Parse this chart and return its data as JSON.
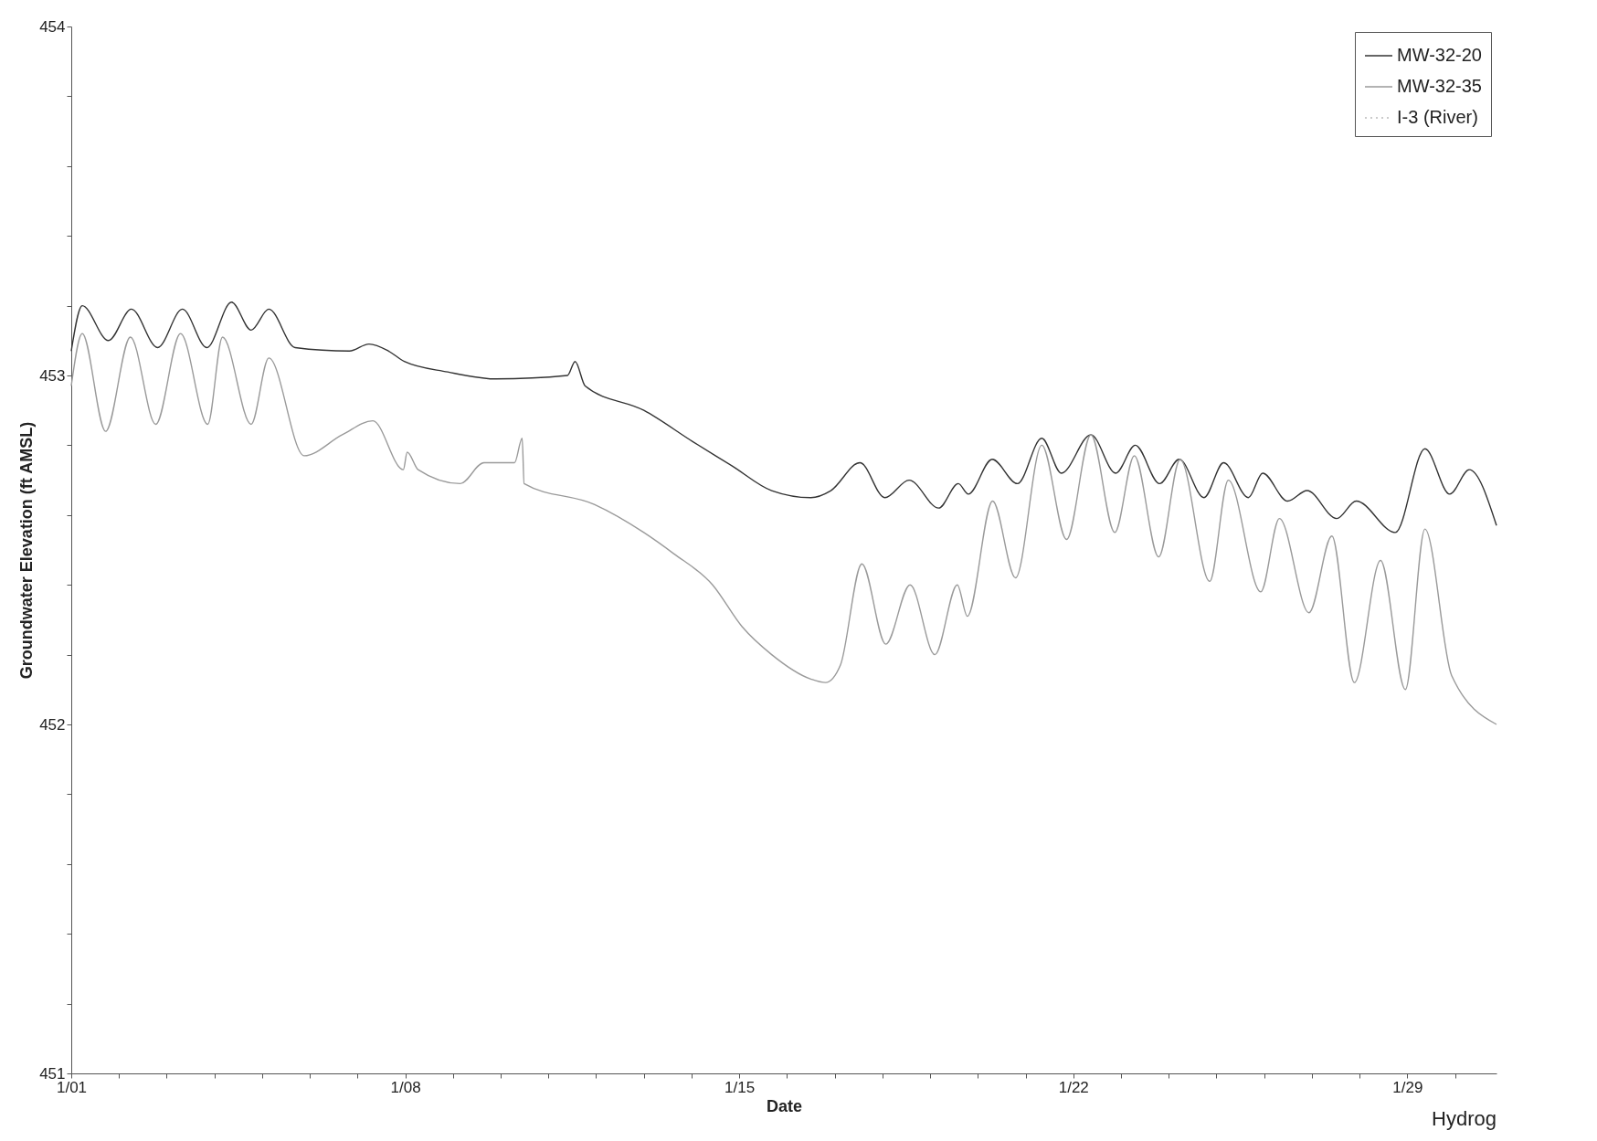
{
  "chart_data": {
    "type": "line",
    "xlabel": "Date",
    "ylabel": "Groundwater Elevation (ft AMSL)",
    "annotations": [
      "Hydrog"
    ],
    "xlim": [
      "--01-01",
      "--01-30T20:53"
    ],
    "ylim": [
      451,
      454
    ],
    "xticks": [
      {
        "value": "--01-01",
        "label": "1/01"
      },
      {
        "value": "--01-02",
        "label": null
      },
      {
        "value": "--01-03",
        "label": null
      },
      {
        "value": "--01-04",
        "label": null
      },
      {
        "value": "--01-05",
        "label": null
      },
      {
        "value": "--01-06",
        "label": null
      },
      {
        "value": "--01-07",
        "label": null
      },
      {
        "value": "--01-08",
        "label": "1/08"
      },
      {
        "value": "--01-09",
        "label": null
      },
      {
        "value": "--01-10",
        "label": null
      },
      {
        "value": "--01-11",
        "label": null
      },
      {
        "value": "--01-12",
        "label": null
      },
      {
        "value": "--01-13",
        "label": null
      },
      {
        "value": "--01-14",
        "label": null
      },
      {
        "value": "--01-15",
        "label": "1/15"
      },
      {
        "value": "--01-16",
        "label": null
      },
      {
        "value": "--01-17",
        "label": null
      },
      {
        "value": "--01-18",
        "label": null
      },
      {
        "value": "--01-19",
        "label": null
      },
      {
        "value": "--01-20",
        "label": null
      },
      {
        "value": "--01-21",
        "label": null
      },
      {
        "value": "--01-22",
        "label": "1/22"
      },
      {
        "value": "--01-23",
        "label": null
      },
      {
        "value": "--01-24",
        "label": null
      },
      {
        "value": "--01-25",
        "label": null
      },
      {
        "value": "--01-26",
        "label": null
      },
      {
        "value": "--01-27",
        "label": null
      },
      {
        "value": "--01-28",
        "label": null
      },
      {
        "value": "--01-29",
        "label": "1/29"
      },
      {
        "value": "--01-30",
        "label": null
      }
    ],
    "yticks": [
      451,
      {
        "value": 451.2,
        "label": null
      },
      {
        "value": 451.4,
        "label": null
      },
      {
        "value": 451.6,
        "label": null
      },
      {
        "value": 451.8,
        "label": null
      },
      452,
      {
        "value": 452.2,
        "label": null
      },
      {
        "value": 452.4,
        "label": null
      },
      {
        "value": 452.6,
        "label": null
      },
      {
        "value": 452.8,
        "label": null
      },
      453,
      {
        "value": 453.2,
        "label": null
      },
      {
        "value": 453.4,
        "label": null
      },
      {
        "value": 453.6,
        "label": null
      },
      {
        "value": 453.8,
        "label": null
      },
      454
    ],
    "legend": "top right",
    "series": [
      {
        "name": "MW-32-20",
        "color": "#333333",
        "line_style": "solid",
        "x": [
          "--01-01",
          "--01-01T05:31",
          "--01-01T18:43",
          "--01-02T06:14",
          "--01-02T19:26",
          "--01-03T07:55",
          "--01-03T20:10",
          "--01-04T08:38",
          "--01-04T18:29",
          "--01-05T03:22",
          "--01-05T16:34",
          "--01-06T19:55",
          "--01-07T05:46",
          "--01-07T15:36",
          "--01-07T23:31",
          "--01-08T21:22",
          "--01-09T21:50",
          "--01-11T09:36",
          "--01-11T13:26",
          "--01-11T18:29",
          "--01-13",
          "--01-14T00:43",
          "--01-14T20:38",
          "--01-15T16:19",
          "--01-16T12:00",
          "--01-16T22:05",
          "--01-17T12:43",
          "--01-18T01:12",
          "--01-18T13:26",
          "--01-19T04:19",
          "--01-19T14:10",
          "--01-19T19:12",
          "--01-20T07:12",
          "--01-20T19:55",
          "--01-21T08:10",
          "--01-21T18:00",
          "--01-22T08:53",
          "--01-22T21:22",
          "--01-23T07:12",
          "--01-23T19:26",
          "--01-24T05:17",
          "--01-24T17:46",
          "--01-25T03:36",
          "--01-25T16:05",
          "--01-25T23:17",
          "--01-26T11:46",
          "--01-26T21:36",
          "--01-27T12:29",
          "--01-27T22:19",
          "--01-28T18:00",
          "--01-29T08:53",
          "--01-29T21:22",
          "--01-30T07:12",
          "--01-30T20:53"
        ],
        "values": [
          453.07,
          453.2,
          453.1,
          453.19,
          453.08,
          453.19,
          453.08,
          453.21,
          453.13,
          453.19,
          453.08,
          453.07,
          453.09,
          453.07,
          453.04,
          453.01,
          452.99,
          453.0,
          453.04,
          452.97,
          452.9,
          452.81,
          452.74,
          452.67,
          452.65,
          452.67,
          452.75,
          452.65,
          452.7,
          452.62,
          452.69,
          452.66,
          452.76,
          452.69,
          452.82,
          452.72,
          452.83,
          452.72,
          452.8,
          452.69,
          452.76,
          452.65,
          452.75,
          452.65,
          452.72,
          452.64,
          452.67,
          452.59,
          452.64,
          452.55,
          452.79,
          452.66,
          452.73,
          452.57
        ]
      },
      {
        "name": "MW-32-35",
        "color": "#9a9a9a",
        "line_style": "solid",
        "x": [
          "--01-01",
          "--01-01T05:31",
          "--01-01T17:17",
          "--01-02T05:46",
          "--01-02T18:29",
          "--01-03T06:58",
          "--01-03T20:38",
          "--01-04T04:05",
          "--01-04T18:29",
          "--01-05T03:22",
          "--01-05T21:07",
          "--01-06T16:19",
          "--01-07T07:41",
          "--01-07T23:02",
          "--01-08T00:58",
          "--01-08T06:29",
          "--01-09T03:36",
          "--01-09T15:36",
          "--01-10T06:58",
          "--01-10T10:48",
          "--01-10T11:46",
          "--01-11T23:17",
          "--01-13",
          "--01-13T14:53",
          "--01-14T10:34",
          "--01-15T01:26",
          "--01-15T16:19",
          "--01-16T12:00",
          "--01-16T19:26",
          "--01-17T02:53",
          "--01-17T13:41",
          "--01-18T01:41",
          "--01-18T13:55",
          "--01-19T02:24",
          "--01-19T13:41",
          "--01-19T18:43",
          "--01-20T07:26",
          "--01-20T18:58",
          "--01-21T08:10",
          "--01-21T20:38",
          "--01-22T08:53",
          "--01-22T20:53",
          "--01-23T06:43",
          "--01-23T18:58",
          "--01-24T05:46",
          "--01-24T20:38",
          "--01-25T06:00",
          "--01-25T22:19",
          "--01-26T07:41",
          "--01-26T22:34",
          "--01-27T10:05",
          "--01-27T21:22",
          "--01-28T10:34",
          "--01-28T23:02",
          "--01-29T08:53",
          "--01-29T22:19",
          "--01-30T20:53"
        ],
        "values": [
          452.97,
          453.12,
          452.84,
          453.11,
          452.86,
          453.12,
          452.86,
          453.11,
          452.86,
          453.05,
          452.77,
          452.83,
          452.87,
          452.73,
          452.78,
          452.73,
          452.69,
          452.75,
          452.75,
          452.82,
          452.69,
          452.63,
          452.55,
          452.49,
          452.4,
          452.28,
          452.2,
          452.13,
          452.12,
          452.17,
          452.46,
          452.23,
          452.4,
          452.2,
          452.4,
          452.31,
          452.64,
          452.42,
          452.8,
          452.53,
          452.83,
          452.55,
          452.77,
          452.48,
          452.76,
          452.41,
          452.7,
          452.38,
          452.59,
          452.32,
          452.54,
          452.12,
          452.47,
          452.1,
          452.56,
          452.14,
          452.0
        ]
      },
      {
        "name": "I-3 (River)",
        "color": "#bbbbbb",
        "line_style": "dotted"
      }
    ]
  }
}
